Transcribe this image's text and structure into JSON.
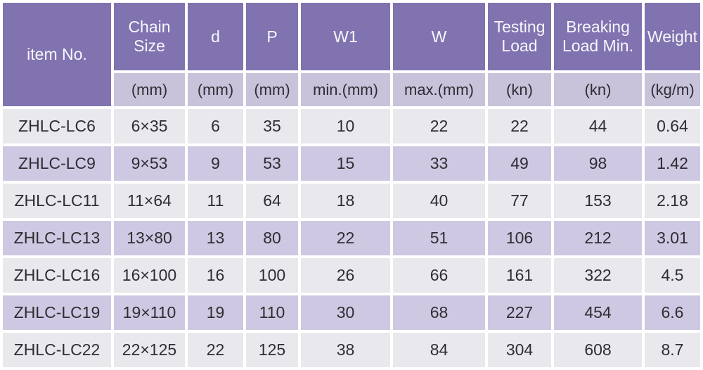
{
  "colors": {
    "header_bg": "#8173b0",
    "unit_row_bg": "#c9c2db",
    "row_bg": "#e9e8ed",
    "row_alt_bg": "#cfc8e2",
    "header_text": "#f8f6fb",
    "body_text": "#2f2d33",
    "gap": "#ffffff"
  },
  "chart_data": {
    "type": "table",
    "title": "",
    "columns": [
      {
        "id": "item-no",
        "label": "item No.",
        "unit": ""
      },
      {
        "id": "chain-size",
        "label": "Chain Size",
        "unit": "(mm)"
      },
      {
        "id": "d",
        "label": "d",
        "unit": "(mm)"
      },
      {
        "id": "p",
        "label": "P",
        "unit": "(mm)"
      },
      {
        "id": "w1",
        "label": "W1",
        "unit": "min.(mm)"
      },
      {
        "id": "w",
        "label": "W",
        "unit": "max.(mm)"
      },
      {
        "id": "testing-load",
        "label": "Testing Load",
        "unit": "(kn)"
      },
      {
        "id": "breaking-load-min",
        "label": "Breaking Load Min.",
        "unit": "(kn)"
      },
      {
        "id": "weight",
        "label": "Weight",
        "unit": "(kg/m)"
      }
    ],
    "rows": [
      [
        "ZHLC-LC6",
        "6×35",
        "6",
        "35",
        "10",
        "22",
        "22",
        "44",
        "0.64"
      ],
      [
        "ZHLC-LC9",
        "9×53",
        "9",
        "53",
        "15",
        "33",
        "49",
        "98",
        "1.42"
      ],
      [
        "ZHLC-LC11",
        "11×64",
        "11",
        "64",
        "18",
        "40",
        "77",
        "153",
        "2.18"
      ],
      [
        "ZHLC-LC13",
        "13×80",
        "13",
        "80",
        "22",
        "51",
        "106",
        "212",
        "3.01"
      ],
      [
        "ZHLC-LC16",
        "16×100",
        "16",
        "100",
        "26",
        "66",
        "161",
        "322",
        "4.5"
      ],
      [
        "ZHLC-LC19",
        "19×110",
        "19",
        "110",
        "30",
        "68",
        "227",
        "454",
        "6.6"
      ],
      [
        "ZHLC-LC22",
        "22×125",
        "22",
        "125",
        "38",
        "84",
        "304",
        "608",
        "8.7"
      ]
    ]
  }
}
